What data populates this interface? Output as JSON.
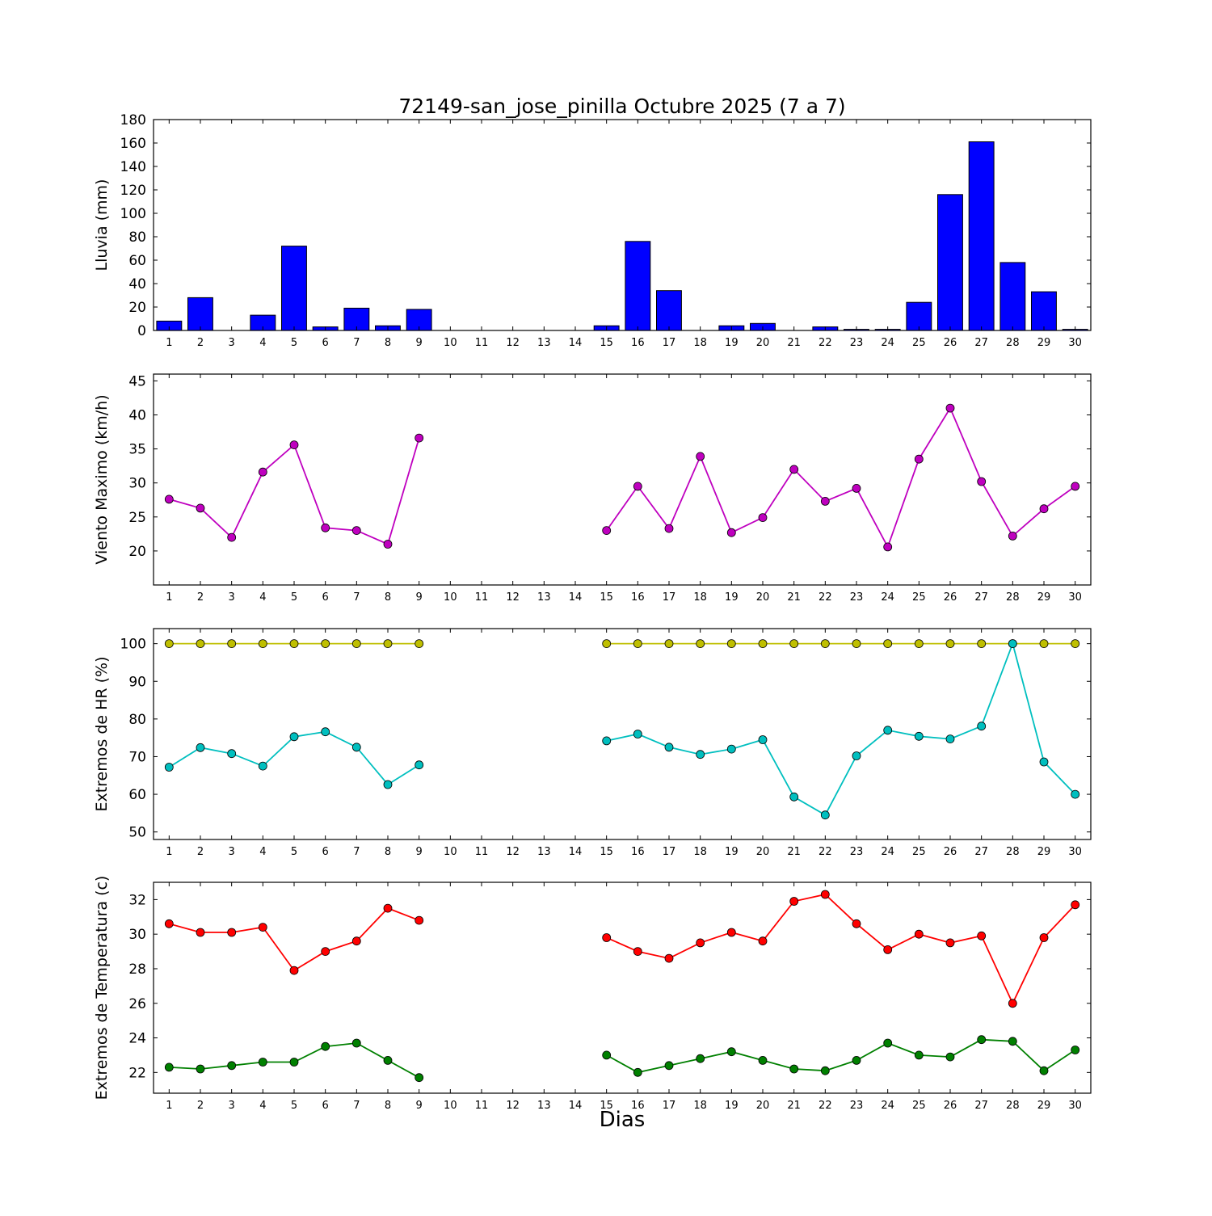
{
  "title": "72149-san_jose_pinilla Octubre 2025  (7 a 7)",
  "xlabel": "Dias",
  "chart_layout": {
    "xlim": [
      0.5,
      30.5
    ],
    "xticks": [
      1,
      2,
      3,
      4,
      5,
      6,
      7,
      8,
      9,
      10,
      11,
      12,
      13,
      14,
      15,
      16,
      17,
      18,
      19,
      20,
      21,
      22,
      23,
      24,
      25,
      26,
      27,
      28,
      29,
      30
    ],
    "grid": false,
    "legend": "none",
    "background": "#ffffff",
    "axis_color": "#000000"
  },
  "chart_data": [
    {
      "type": "bar",
      "ylabel": "Lluvia (mm)",
      "color": "#0000ff",
      "bar_width": 0.8,
      "ylim": [
        0,
        180
      ],
      "yticks": [
        0,
        20,
        40,
        60,
        80,
        100,
        120,
        140,
        160,
        180
      ],
      "x": [
        1,
        2,
        3,
        4,
        5,
        6,
        7,
        8,
        9,
        10,
        11,
        12,
        13,
        14,
        15,
        16,
        17,
        18,
        19,
        20,
        21,
        22,
        23,
        24,
        25,
        26,
        27,
        28,
        29,
        30
      ],
      "values": [
        8,
        28,
        0,
        13,
        72,
        3,
        19,
        4,
        18,
        null,
        null,
        null,
        null,
        null,
        4,
        76,
        34,
        0,
        4,
        6,
        0,
        3,
        1,
        1,
        24,
        116,
        161,
        58,
        33,
        1
      ]
    },
    {
      "type": "line",
      "ylabel": "Viento Maximo (km/h)",
      "ylim": [
        15,
        46
      ],
      "yticks": [
        20,
        25,
        30,
        35,
        40,
        45
      ],
      "x": [
        1,
        2,
        3,
        4,
        5,
        6,
        7,
        8,
        9,
        10,
        11,
        12,
        13,
        14,
        15,
        16,
        17,
        18,
        19,
        20,
        21,
        22,
        23,
        24,
        25,
        26,
        27,
        28,
        29,
        30
      ],
      "series": [
        {
          "name": "viento-maximo",
          "color": "#bf00bf",
          "values": [
            27.6,
            26.3,
            22.0,
            31.6,
            35.6,
            23.4,
            23.0,
            21.0,
            36.6,
            null,
            null,
            null,
            null,
            null,
            23.0,
            29.5,
            23.3,
            33.9,
            22.7,
            24.9,
            32.0,
            27.3,
            29.2,
            20.6,
            33.5,
            41.0,
            30.2,
            22.2,
            26.2,
            29.5
          ]
        }
      ]
    },
    {
      "type": "line",
      "ylabel": "Extremos de HR (%)",
      "ylim": [
        48,
        104
      ],
      "yticks": [
        50,
        60,
        70,
        80,
        90,
        100
      ],
      "x": [
        1,
        2,
        3,
        4,
        5,
        6,
        7,
        8,
        9,
        10,
        11,
        12,
        13,
        14,
        15,
        16,
        17,
        18,
        19,
        20,
        21,
        22,
        23,
        24,
        25,
        26,
        27,
        28,
        29,
        30
      ],
      "series": [
        {
          "name": "hr-maxima",
          "color": "#bfbf00",
          "values": [
            100,
            100,
            100,
            100,
            100,
            100,
            100,
            100,
            100,
            null,
            null,
            null,
            null,
            null,
            100,
            100,
            100,
            100,
            100,
            100,
            100,
            100,
            100,
            100,
            100,
            100,
            100,
            100,
            100,
            100
          ]
        },
        {
          "name": "hr-minima",
          "color": "#00bfbf",
          "values": [
            67.2,
            72.4,
            70.8,
            67.5,
            75.3,
            76.6,
            72.5,
            62.6,
            67.8,
            null,
            null,
            null,
            null,
            null,
            74.2,
            76.0,
            72.5,
            70.6,
            72.0,
            74.5,
            59.3,
            54.5,
            70.2,
            77.0,
            75.4,
            74.7,
            78.1,
            100.0,
            68.6,
            60.0
          ]
        }
      ]
    },
    {
      "type": "line",
      "ylabel": "Extremos de Temperatura (c)",
      "ylim": [
        20.8,
        33
      ],
      "yticks": [
        22,
        24,
        26,
        28,
        30,
        32
      ],
      "x": [
        1,
        2,
        3,
        4,
        5,
        6,
        7,
        8,
        9,
        10,
        11,
        12,
        13,
        14,
        15,
        16,
        17,
        18,
        19,
        20,
        21,
        22,
        23,
        24,
        25,
        26,
        27,
        28,
        29,
        30
      ],
      "series": [
        {
          "name": "temperatura-maxima",
          "color": "#ff0000",
          "values": [
            30.6,
            30.1,
            30.1,
            30.4,
            27.9,
            29.0,
            29.6,
            31.5,
            30.8,
            null,
            null,
            null,
            null,
            null,
            29.8,
            29.0,
            28.6,
            29.5,
            30.1,
            29.6,
            31.9,
            32.3,
            30.6,
            29.1,
            30.0,
            29.5,
            29.9,
            26.0,
            29.8,
            31.7
          ]
        },
        {
          "name": "temperatura-minima",
          "color": "#008000",
          "values": [
            22.3,
            22.2,
            22.4,
            22.6,
            22.6,
            23.5,
            23.7,
            22.7,
            21.7,
            null,
            null,
            null,
            null,
            null,
            23.0,
            22.0,
            22.4,
            22.8,
            23.2,
            22.7,
            22.2,
            22.1,
            22.7,
            23.7,
            23.0,
            22.9,
            23.9,
            23.8,
            22.1,
            23.3
          ]
        }
      ]
    }
  ]
}
